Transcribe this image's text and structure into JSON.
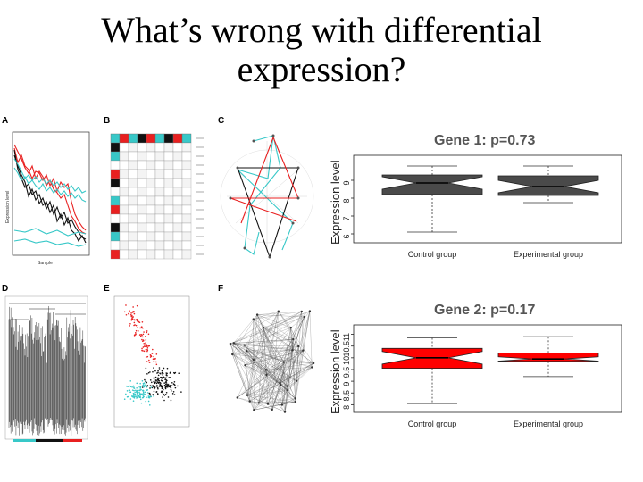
{
  "slide": {
    "title_line1": "What’s wrong with differential",
    "title_line2": "expression?"
  },
  "panels": {
    "A": {
      "label": "A",
      "ylabel": "Expression level",
      "xlabel": "Sample"
    },
    "B": {
      "label": "B"
    },
    "C": {
      "label": "C"
    },
    "D": {
      "label": "D"
    },
    "E": {
      "label": "E"
    },
    "F": {
      "label": "F"
    }
  },
  "chart_data": [
    {
      "type": "boxplot",
      "title": "Gene 1: p=0.73",
      "ylabel": "Expression level",
      "categories": [
        "Control group",
        "Experimental group"
      ],
      "yticks": [
        6,
        7,
        8,
        9
      ],
      "ylim": [
        5.8,
        10.2
      ],
      "color": "#4a4a4a",
      "boxes": [
        {
          "name": "Control group",
          "min": 6.1,
          "q1": 8.2,
          "median": 8.85,
          "q3": 9.3,
          "max": 9.8
        },
        {
          "name": "Experimental group",
          "min": 7.75,
          "q1": 8.15,
          "median": 8.65,
          "q3": 9.25,
          "max": 9.8
        }
      ]
    },
    {
      "type": "boxplot",
      "title": "Gene 2: p=0.17",
      "ylabel": "Expression level",
      "categories": [
        "Control group",
        "Experimental group"
      ],
      "yticks": [
        8.0,
        8.5,
        9.0,
        9.5,
        10.0,
        10.5,
        11.0
      ],
      "ylim": [
        7.9,
        11.25
      ],
      "color": "#ff0000",
      "boxes": [
        {
          "name": "Control group",
          "min": 8.05,
          "q1": 9.55,
          "median": 10.0,
          "q3": 10.4,
          "max": 10.85
        },
        {
          "name": "Experimental group",
          "min": 9.2,
          "q1": 9.85,
          "median": 9.95,
          "q3": 10.2,
          "max": 10.9
        }
      ]
    }
  ]
}
